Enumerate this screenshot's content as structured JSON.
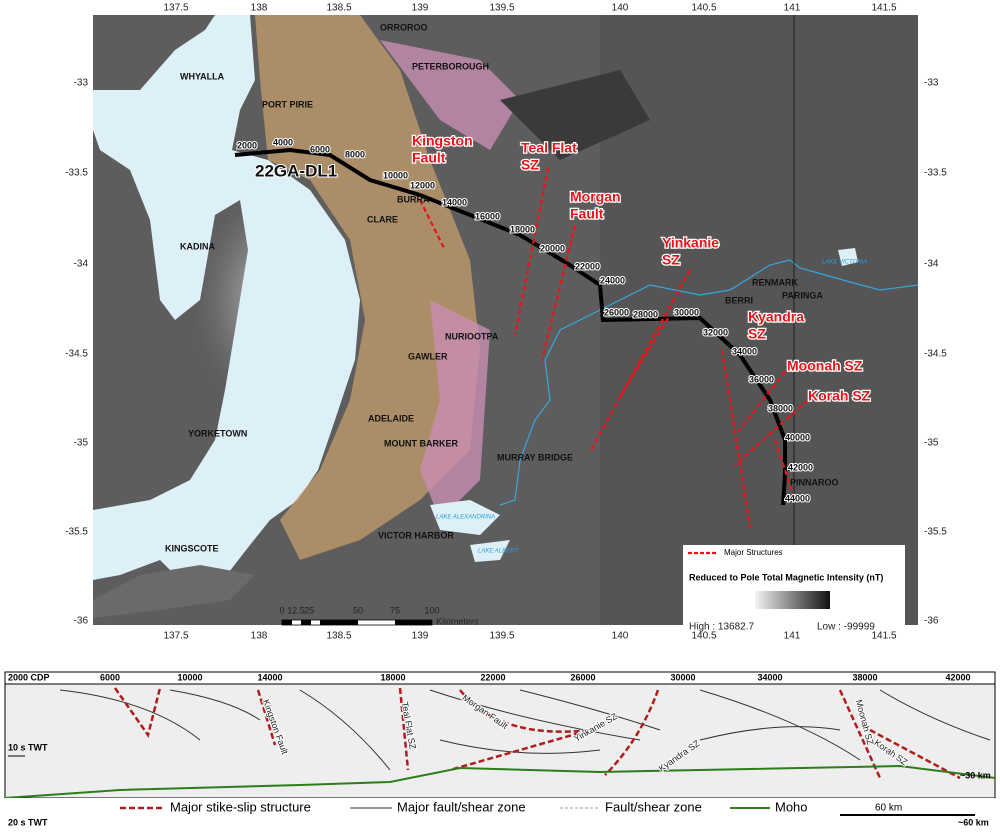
{
  "map": {
    "lon_ticks": [
      "137.5",
      "138",
      "138.5",
      "139",
      "139.5",
      "140",
      "140.5",
      "141",
      "141.5"
    ],
    "lat_ticks": [
      "-33",
      "-33.5",
      "-34",
      "-34.5",
      "-35",
      "-35.5",
      "-36"
    ],
    "places": [
      "ORROROO",
      "PETERBOROUGH",
      "WHYALLA",
      "PORT PIRIE",
      "BURRA",
      "CLARE",
      "KADINA",
      "NURIOOTPA",
      "GAWLER",
      "ADELAIDE",
      "MOUNT BARKER",
      "YORKETOWN",
      "MURRAY BRIDGE",
      "VICTOR HARBOR",
      "KINGSCOTE",
      "RENMARK",
      "PARINGA",
      "BERRI",
      "PINNAROO"
    ],
    "water": [
      "LAKE VICTORIA",
      "LAKE ALEXANDRINA",
      "LAKE ALBERT"
    ],
    "line_name": "22GA-DL1",
    "cdp_labels": [
      "2000",
      "4000",
      "6000",
      "8000",
      "10000",
      "12000",
      "14000",
      "16000",
      "18000",
      "20000",
      "22000",
      "24000",
      "26000",
      "28000",
      "30000",
      "32000",
      "34000",
      "36000",
      "38000",
      "40000",
      "42000",
      "44000"
    ],
    "structures": [
      [
        "Kingston",
        "Fault"
      ],
      [
        "Teal Flat",
        "SZ"
      ],
      [
        "Morgan",
        "Fault"
      ],
      [
        "Yinkanie",
        "SZ"
      ],
      [
        "Kyandra",
        "SZ"
      ],
      [
        "Moonah SZ"
      ],
      [
        "Korah SZ"
      ]
    ],
    "legend": {
      "structures": "Major Structures",
      "tmi_title": "Reduced to Pole Total Magnetic Intensity (nT)",
      "high": "High : 13682.7",
      "low": "Low : -99999"
    },
    "scale": {
      "ticks": [
        "0",
        "12.5",
        "25",
        "50",
        "75",
        "100"
      ],
      "unit": "Kilometers"
    }
  },
  "section": {
    "cdp_title": "2000 CDP",
    "cdp_ticks": [
      "6000",
      "10000",
      "14000",
      "18000",
      "22000",
      "26000",
      "30000",
      "34000",
      "38000",
      "42000"
    ],
    "twt": [
      "10 s TWT",
      "20 s TWT"
    ],
    "depth": [
      "~30 km",
      "~60 km"
    ],
    "scale": "60 km",
    "structures": [
      "Kingston Fault",
      "Teal Flat SZ",
      "Morgan Fault",
      "Yinkanie SZ",
      "Kyandra SZ",
      "Moonah SZ",
      "Korah SZ"
    ],
    "legend": [
      "Major stike-slip structure",
      "Major fault/shear zone",
      "Fault/shear zone",
      "Moho"
    ]
  }
}
